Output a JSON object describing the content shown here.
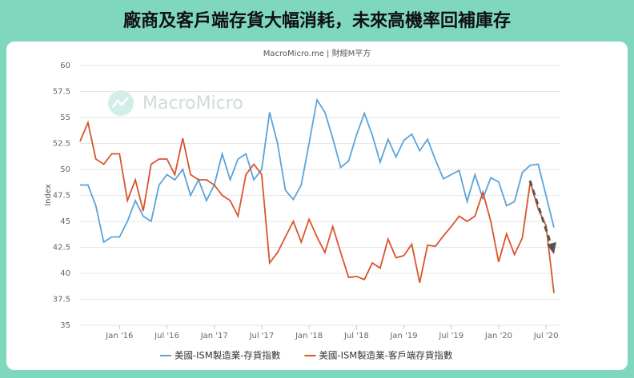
{
  "chart_data": {
    "type": "line",
    "title": "廠商及客戶端存貨大幅消耗，未來高機率回補庫存",
    "subtitle": "MacroMicro.me | 財經M平方",
    "watermark": "MacroMicro",
    "y_label": "Index",
    "categories": [
      null,
      null,
      null,
      null,
      null,
      "Jan '16",
      null,
      null,
      null,
      null,
      null,
      "Jul '16",
      null,
      null,
      null,
      null,
      null,
      "Jan '17",
      null,
      null,
      null,
      null,
      null,
      "Jul '17",
      null,
      null,
      null,
      null,
      null,
      "Jan '18",
      null,
      null,
      null,
      null,
      null,
      "Jul '18",
      null,
      null,
      null,
      null,
      null,
      "Jan '19",
      null,
      null,
      null,
      null,
      null,
      "Jul '19",
      null,
      null,
      null,
      null,
      null,
      "Jan '20",
      null,
      null,
      null,
      null,
      null,
      "Jul '20",
      null
    ],
    "series": [
      {
        "name": "美國-ISM製造業-存貨指數",
        "color": "#5ba3d9",
        "values": [
          48.5,
          48.5,
          46.5,
          43,
          43.5,
          43.5,
          45,
          47,
          45.5,
          45,
          48.5,
          49.5,
          49,
          50,
          47.5,
          49,
          47,
          48.5,
          51.5,
          49,
          51,
          51.5,
          49,
          50,
          55.5,
          52.5,
          48,
          47.1,
          48.5,
          52.5,
          56.7,
          55.5,
          53,
          50.2,
          50.8,
          53.3,
          55.4,
          53.3,
          50.7,
          52.9,
          51.2,
          52.8,
          53.4,
          51.8,
          52.9,
          50.9,
          49.1,
          49.5,
          49.9,
          46.9,
          49.5,
          47.2,
          49.2,
          48.8,
          46.5,
          46.9,
          49.7,
          50.4,
          50.5,
          47.5,
          44.4
        ]
      },
      {
        "name": "美國-ISM製造業-客戶端存貨指數",
        "color": "#d9542b",
        "values": [
          52.7,
          54.5,
          51,
          50.5,
          51.5,
          51.5,
          47,
          49,
          46,
          50.5,
          51,
          51,
          49.5,
          53,
          49.5,
          49,
          49,
          48.5,
          47.5,
          47,
          45.5,
          49.5,
          50.5,
          49.5,
          41,
          42,
          43.5,
          45,
          43,
          45.2,
          43.5,
          42,
          44.5,
          42,
          39.6,
          39.7,
          39.4,
          41,
          40.5,
          43.3,
          41.5,
          41.7,
          42.8,
          39.1,
          42.7,
          42.6,
          43.6,
          44.5,
          45.5,
          45,
          45.5,
          47.8,
          45,
          41.1,
          43.8,
          41.8,
          43.4,
          48.8,
          46.2,
          44.6,
          38.1
        ]
      }
    ],
    "ylim": [
      35,
      60
    ],
    "yticks": [
      35,
      37.5,
      40,
      42.5,
      45,
      47.5,
      50,
      52.5,
      55,
      57.5,
      60
    ],
    "grid": true
  }
}
